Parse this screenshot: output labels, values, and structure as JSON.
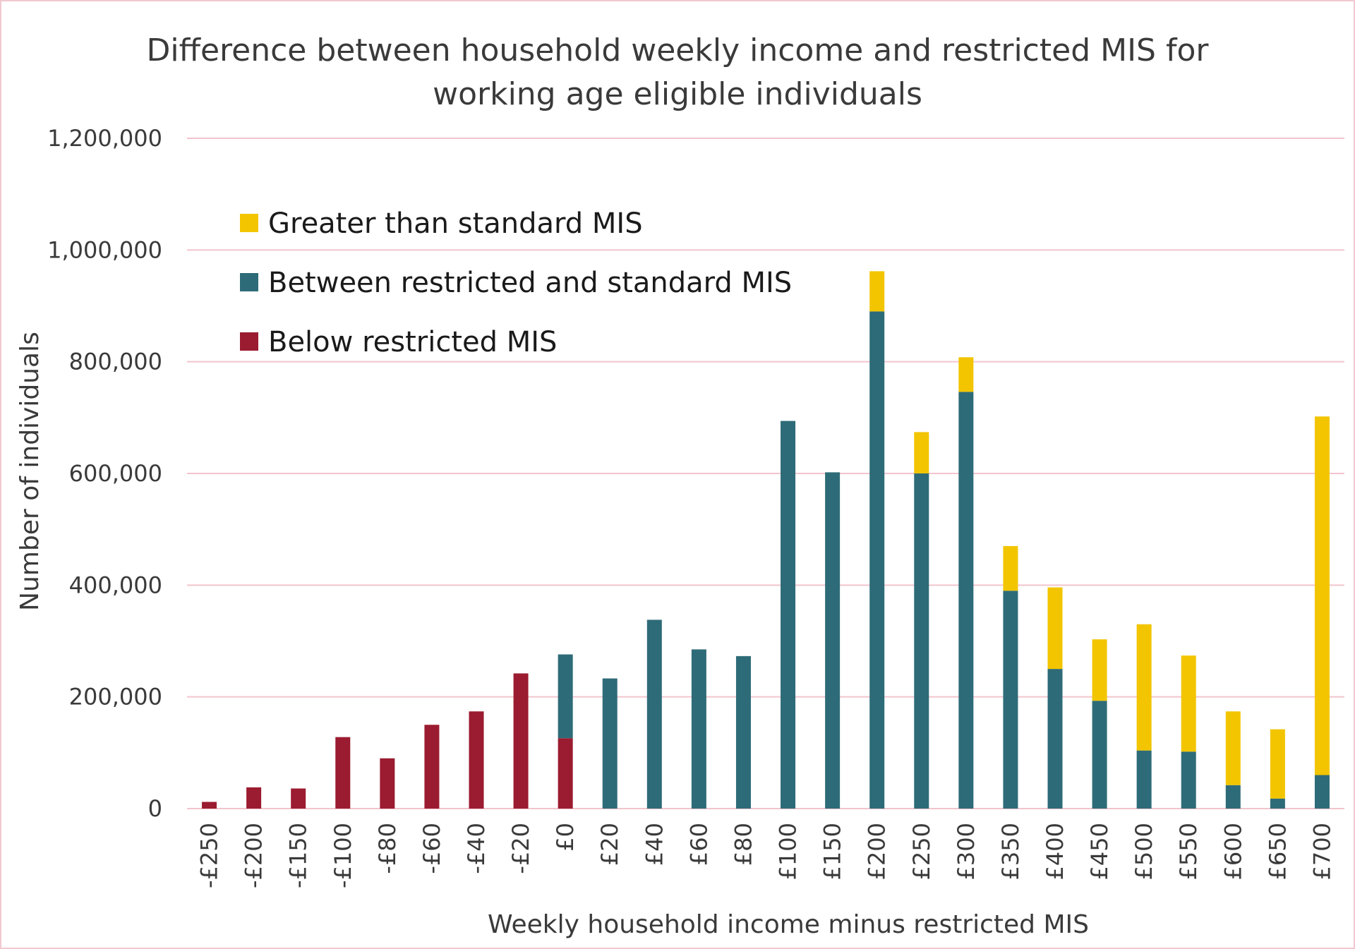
{
  "chart_data": {
    "type": "bar",
    "stacked": true,
    "title_line1": "Difference between household weekly income and restricted MIS for",
    "title_line2": "working age eligible individuals",
    "xlabel": "Weekly household income minus restricted MIS",
    "ylabel": "Number of individuals",
    "ylim": [
      0,
      1200000
    ],
    "yticks": [
      "0",
      "200,000",
      "400,000",
      "600,000",
      "800,000",
      "1,000,000",
      "1,200,000"
    ],
    "ytick_values": [
      0,
      200000,
      400000,
      600000,
      800000,
      1000000,
      1200000
    ],
    "grid": true,
    "legend_position": "top-left",
    "categories": [
      "-£250",
      "-£200",
      "-£150",
      "-£100",
      "-£80",
      "-£60",
      "-£40",
      "-£20",
      "£0",
      "£20",
      "£40",
      "£60",
      "£80",
      "£100",
      "£150",
      "£200",
      "£250",
      "£300",
      "£350",
      "£400",
      "£450",
      "£500",
      "£550",
      "£600",
      "£650",
      "£700"
    ],
    "series": [
      {
        "name": "Below restricted MIS",
        "color": "#9b1b30",
        "values": [
          12000,
          38000,
          36000,
          128000,
          90000,
          150000,
          174000,
          242000,
          126000,
          0,
          0,
          0,
          0,
          0,
          0,
          0,
          0,
          0,
          0,
          0,
          0,
          0,
          0,
          0,
          0,
          0
        ]
      },
      {
        "name": "Between restricted and standard MIS",
        "color": "#2e6b78",
        "values": [
          0,
          0,
          0,
          0,
          0,
          0,
          0,
          0,
          150000,
          233000,
          338000,
          285000,
          273000,
          694000,
          602000,
          890000,
          600000,
          746000,
          390000,
          250000,
          193000,
          104000,
          102000,
          42000,
          18000,
          60000
        ]
      },
      {
        "name": "Greater than standard MIS",
        "color": "#f2c500",
        "values": [
          0,
          0,
          0,
          0,
          0,
          0,
          0,
          0,
          0,
          0,
          0,
          0,
          0,
          0,
          0,
          72000,
          74000,
          62000,
          80000,
          146000,
          110000,
          226000,
          172000,
          132000,
          124000,
          642000
        ]
      }
    ],
    "legend_order": [
      2,
      1,
      0
    ]
  }
}
